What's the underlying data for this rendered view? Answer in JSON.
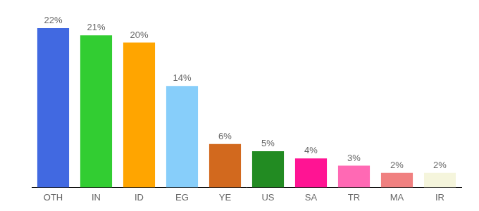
{
  "chart_data": {
    "type": "bar",
    "categories": [
      "OTH",
      "IN",
      "ID",
      "EG",
      "YE",
      "US",
      "SA",
      "TR",
      "MA",
      "IR"
    ],
    "values": [
      22,
      21,
      20,
      14,
      6,
      5,
      4,
      3,
      2,
      2
    ],
    "value_labels": [
      "22%",
      "21%",
      "20%",
      "14%",
      "6%",
      "5%",
      "4%",
      "3%",
      "2%",
      "2%"
    ],
    "colors": [
      "#4169e1",
      "#32cd32",
      "#ffa500",
      "#87cefa",
      "#d2691e",
      "#228b22",
      "#ff1493",
      "#ff69b4",
      "#f08080",
      "#f5f5dc"
    ],
    "ylim": [
      0,
      22
    ],
    "grid": false,
    "data_labels": true,
    "tick_labels": "x"
  }
}
